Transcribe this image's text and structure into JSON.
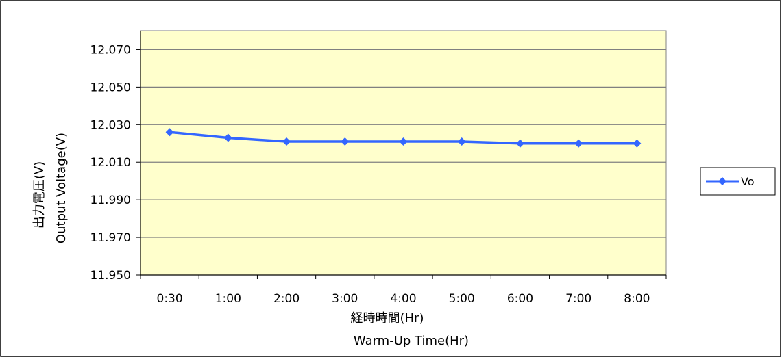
{
  "chart_data": {
    "type": "line",
    "categories": [
      "0:30",
      "1:00",
      "2:00",
      "3:00",
      "4:00",
      "5:00",
      "6:00",
      "7:00",
      "8:00"
    ],
    "series": [
      {
        "name": "Vo",
        "values": [
          12.026,
          12.023,
          12.021,
          12.021,
          12.021,
          12.021,
          12.02,
          12.02,
          12.02
        ],
        "color": "#3366ff"
      }
    ],
    "ylim": [
      11.95,
      12.08
    ],
    "yticks": [
      "11.950",
      "11.970",
      "11.990",
      "12.010",
      "12.030",
      "12.050",
      "12.070"
    ],
    "ytick_values": [
      11.95,
      11.97,
      11.99,
      12.01,
      12.03,
      12.05,
      12.07
    ],
    "xlabel_line1": "経時時間(Hr)",
    "xlabel_line2": "Warm-Up  Time(Hr)",
    "ylabel_line1": "出力電圧(V)",
    "ylabel_line2": "Output Voltage(V)",
    "grid": true,
    "legend_position": "right",
    "plot_background": "#ffffcc",
    "marker": "diamond"
  }
}
